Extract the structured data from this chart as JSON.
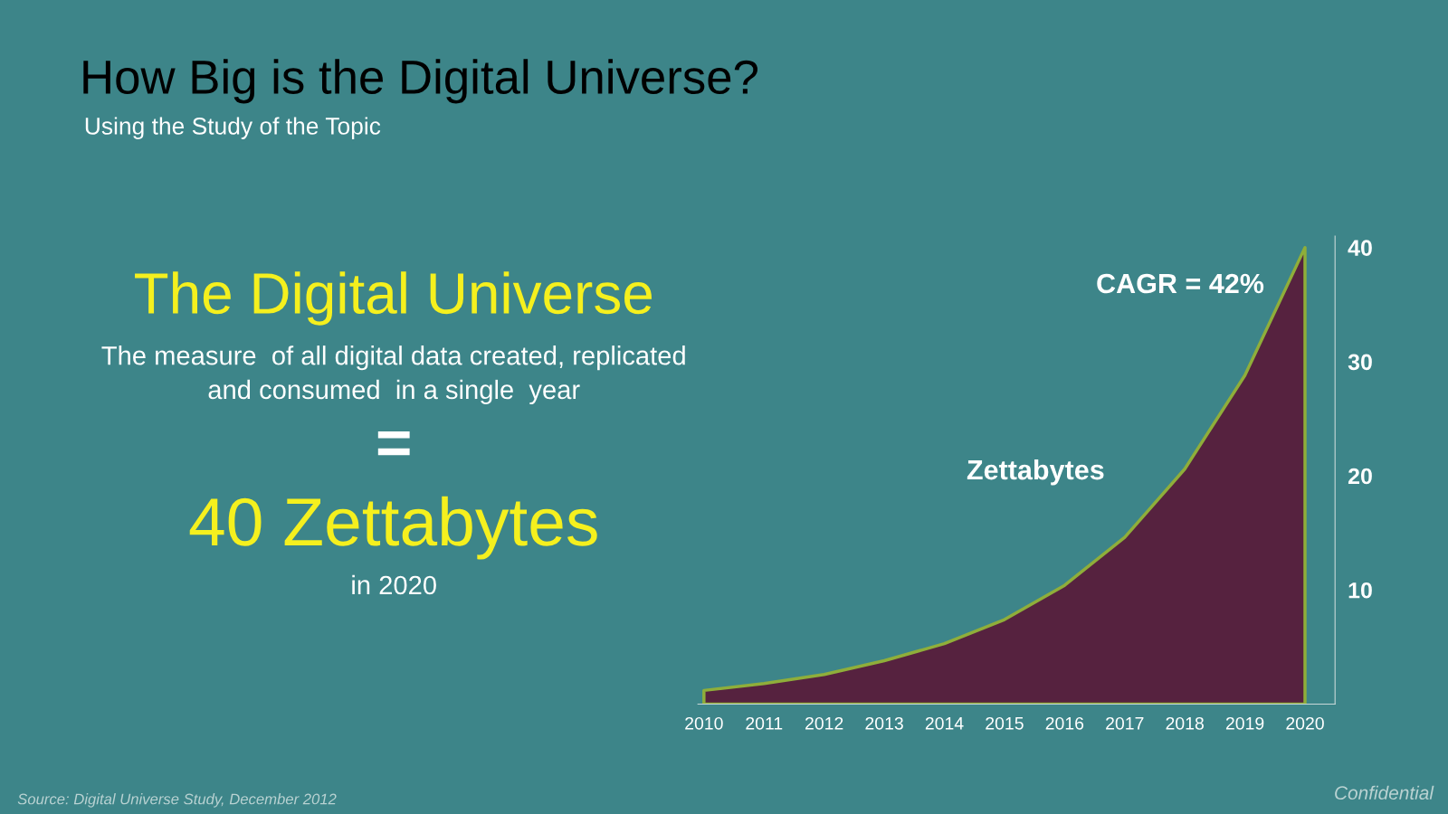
{
  "chart_data": {
    "type": "area",
    "title": "How Big is the Digital Universe?",
    "subtitle": "Using the Study of the Topic",
    "ylabel": "Zettabytes",
    "x": [
      2010,
      2011,
      2012,
      2013,
      2014,
      2015,
      2016,
      2017,
      2018,
      2019,
      2020
    ],
    "series": [
      {
        "color": "#56223f",
        "values": [
          1.2,
          1.8,
          2.6,
          3.8,
          5.3,
          7.4,
          10.4,
          14.6,
          20.6,
          28.8,
          40
        ]
      }
    ],
    "xlim": [
      2009.9,
      2020.5
    ],
    "xticks": [
      2010,
      2011,
      2012,
      2013,
      2014,
      2015,
      2016,
      2017,
      2018,
      2019,
      2020
    ],
    "ylim": [
      0,
      41
    ],
    "yticks": [
      10,
      20,
      30,
      40
    ],
    "grid": false,
    "legend": false,
    "annotations": [
      "The Digital Universe",
      "The measure  of all digital data created, replicated\nand consumed  in a single  year",
      "=",
      "40 Zettabytes",
      "in 2020",
      "CAGR = 42%",
      "Source: Digital Universe Study, December 2012",
      "Confidential"
    ]
  }
}
